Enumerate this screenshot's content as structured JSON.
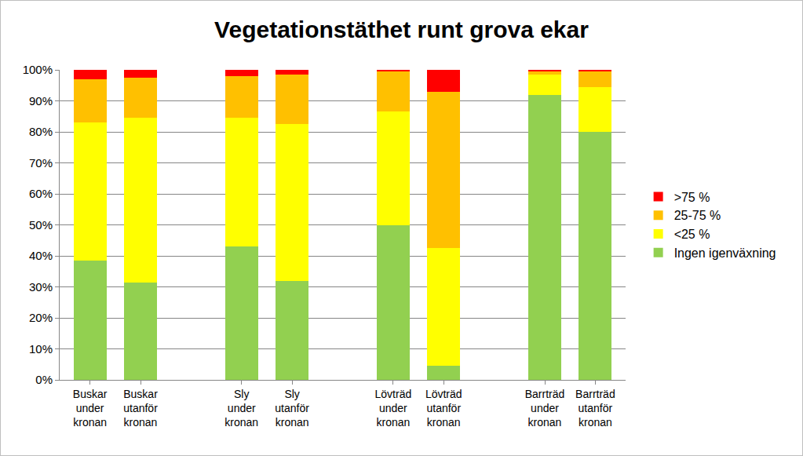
{
  "chart_data": {
    "type": "bar",
    "stacked": true,
    "title": "Vegetationstäthet runt grova ekar",
    "categories": [
      "Buskar under kronan",
      "Buskar utanför kronan",
      null,
      "Sly under kronan",
      "Sly utanför kronan",
      null,
      "Lövträd under kronan",
      "Lövträd utanför kronan",
      null,
      "Barrträd under kronan",
      "Barrträd utanför kronan"
    ],
    "series": [
      {
        "name": "Ingen igenväxning",
        "color": "#92d050",
        "values": [
          38.5,
          31.5,
          null,
          43,
          32,
          null,
          50,
          4.5,
          null,
          92,
          80
        ]
      },
      {
        "name": "<25 %",
        "color": "#ffff00",
        "values": [
          44.5,
          53,
          null,
          41.5,
          50.5,
          null,
          36.5,
          38,
          null,
          6.5,
          14.5
        ]
      },
      {
        "name": "25-75 %",
        "color": "#ffc000",
        "values": [
          14,
          13,
          null,
          13.5,
          16,
          null,
          13,
          50.5,
          null,
          1,
          5
        ]
      },
      {
        "name": ">75 %",
        "color": "#ff0000",
        "values": [
          3,
          2.5,
          null,
          2,
          1.5,
          null,
          0.5,
          7,
          null,
          0.5,
          0.5
        ]
      }
    ],
    "ylim": [
      0,
      100
    ],
    "yticks": [
      {
        "value": 0,
        "label": "0%"
      },
      {
        "value": 10,
        "label": "10%"
      },
      {
        "value": 20,
        "label": "20%"
      },
      {
        "value": 30,
        "label": "30%"
      },
      {
        "value": 40,
        "label": "40%"
      },
      {
        "value": 50,
        "label": "50%"
      },
      {
        "value": 60,
        "label": "60%"
      },
      {
        "value": 70,
        "label": "70%"
      },
      {
        "value": 80,
        "label": "80%"
      },
      {
        "value": 90,
        "label": "90%"
      },
      {
        "value": 100,
        "label": "100%"
      }
    ],
    "grid": true,
    "legend": "right"
  }
}
